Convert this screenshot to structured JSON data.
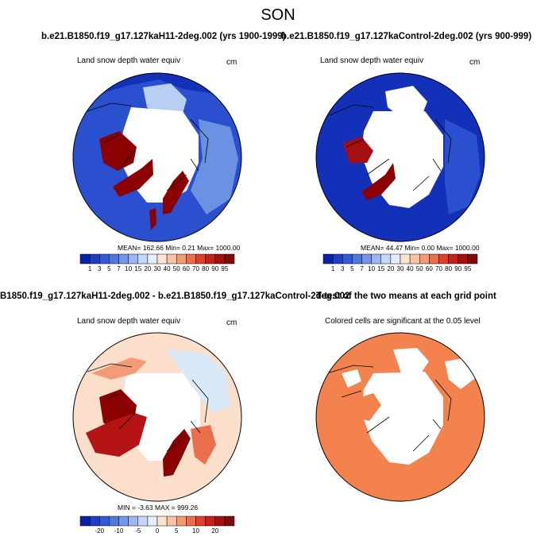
{
  "figure": {
    "season": "SON",
    "title_case_label": "b.e21.B1850.f19_g17.127kaH11-2deg.002 (yrs 1900-1999)",
    "title_control_label": "b.e21.B1850.f19_g17.127kaControl-2deg.002 (yrs 900-999)",
    "title_diff_label": "B1850.f19_g17.127kaH11-2deg.002 - b.e21.B1850.f19_g17.127kaControl-2deg.002",
    "title_ttest_label": "T-test of the two means at each grid point"
  },
  "panels": {
    "case": {
      "variable": "Land snow depth water equiv",
      "units": "cm",
      "stats": "MEAN= 162.66  Min=   0.21  Max= 1000.00"
    },
    "control": {
      "variable": "Land snow depth water equiv",
      "units": "cm",
      "stats": "MEAN=  44.47  Min=   0.00  Max= 1000.00"
    },
    "diff": {
      "variable": "Land snow depth water equiv",
      "units": "cm",
      "stats": "MIN =  -3.63 MAX = 999.26"
    },
    "ttest": {
      "caption": "Colored cells are significant at the 0.05 level"
    }
  },
  "colorbar_abs": {
    "labels": [
      "1",
      "3",
      "5",
      "7",
      "10",
      "15",
      "20",
      "30",
      "40",
      "50",
      "60",
      "70",
      "80",
      "90",
      "95"
    ],
    "colors": [
      "#0a22a8",
      "#1f3cc4",
      "#3559d6",
      "#5077de",
      "#7596e6",
      "#9db6ef",
      "#c5d7f6",
      "#e7eefb",
      "#fde3d2",
      "#f8c2a4",
      "#f39b77",
      "#eb6e4c",
      "#df4128",
      "#c6201b",
      "#a60e12",
      "#7d0b0b"
    ]
  },
  "colorbar_diff": {
    "labels": [
      "-20",
      "-10",
      "-5",
      "0",
      "5",
      "10",
      "20"
    ],
    "colors": [
      "#0a22a8",
      "#1f3cc4",
      "#3559d6",
      "#5077de",
      "#7596e6",
      "#9db6ef",
      "#c5d7f6",
      "#e7eefb",
      "#fde3d2",
      "#f8c2a4",
      "#f39b77",
      "#eb6e4c",
      "#df4128",
      "#c6201b",
      "#a60e12",
      "#7d0b0b"
    ]
  },
  "colors": {
    "snow_deep": "#8b0000",
    "significant": "#f4824f",
    "pale_blue": "#dae9f8",
    "pale_orange": "#fbdfca"
  }
}
